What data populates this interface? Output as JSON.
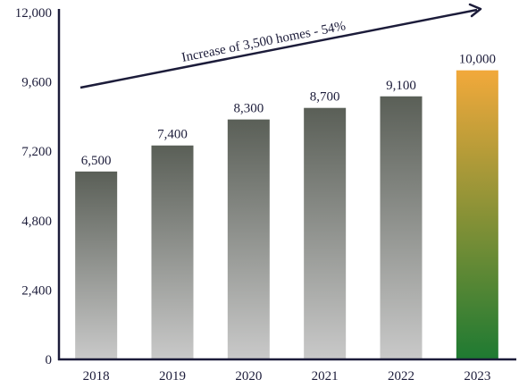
{
  "chart_data": {
    "type": "bar",
    "title": "",
    "xlabel": "",
    "ylabel": "",
    "categories": [
      "2018",
      "2019",
      "2020",
      "2021",
      "2022",
      "2023"
    ],
    "values": [
      6500,
      7400,
      8300,
      8700,
      9100,
      10000
    ],
    "data_labels": [
      "6,500",
      "7,400",
      "8,300",
      "8,700",
      "9,100",
      "10,000"
    ],
    "ylim": [
      0,
      12000
    ],
    "yticks": [
      0,
      2400,
      4800,
      7200,
      9600,
      12000
    ],
    "ytick_labels": [
      "0",
      "2,400",
      "4,800",
      "7,200",
      "9,600",
      "12,000"
    ],
    "grid": false,
    "legend": "none",
    "annotation": {
      "text": "Increase of 3,500 homes - 54%",
      "type": "trend-arrow"
    },
    "colors": {
      "bar_top": "#5a5f57",
      "bar_bottom": "#c9c9c9",
      "highlight_top": "#f2a93b",
      "highlight_bottom": "#1e7a32",
      "axis": "#1c1c3a",
      "arrow": "#1c1c3a"
    },
    "highlight_index": 5
  }
}
